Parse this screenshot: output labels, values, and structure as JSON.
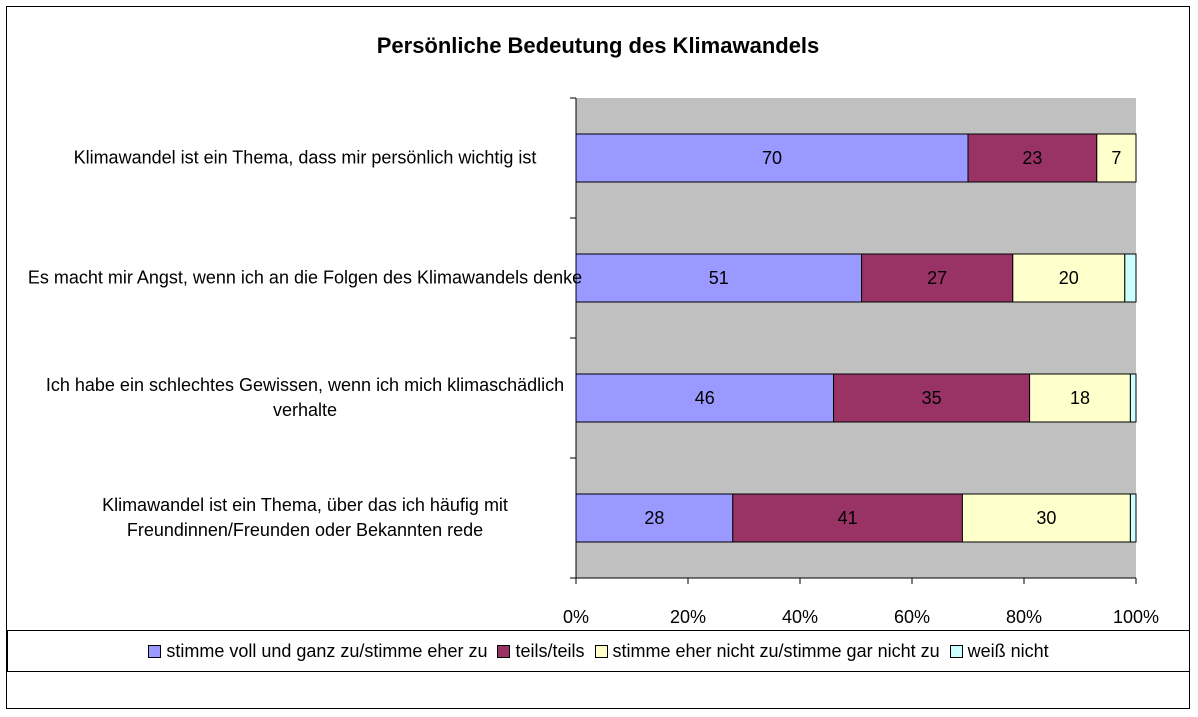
{
  "chart_data": {
    "type": "bar",
    "orientation": "horizontal",
    "stacked": true,
    "title": "Persönliche Bedeutung des Klimawandels",
    "categories": [
      "Klimawandel ist ein Thema, dass mir persönlich wichtig ist",
      "Es macht mir Angst, wenn ich an die Folgen des Klimawandels denke",
      "Ich habe ein schlechtes Gewissen, wenn ich mich klimaschädlich verhalte",
      "Klimawandel ist ein Thema, über das ich häufig mit Freundinnen/Freunden oder Bekannten rede"
    ],
    "series": [
      {
        "name": "stimme voll und ganz zu/stimme eher zu",
        "color": "#9999ff",
        "values": [
          70,
          51,
          46,
          28
        ]
      },
      {
        "name": "teils/teils",
        "color": "#993366",
        "values": [
          23,
          27,
          35,
          41
        ]
      },
      {
        "name": "stimme eher nicht zu/stimme gar nicht zu",
        "color": "#ffffcc",
        "values": [
          7,
          20,
          18,
          30
        ]
      },
      {
        "name": "weiß nicht",
        "color": "#ccffff",
        "values": [
          0,
          2,
          1,
          1
        ]
      }
    ],
    "xlim": [
      0,
      100
    ],
    "xticks": [
      {
        "value": 0,
        "label": "0%"
      },
      {
        "value": 20,
        "label": "20%"
      },
      {
        "value": 40,
        "label": "40%"
      },
      {
        "value": 60,
        "label": "60%"
      },
      {
        "value": 80,
        "label": "80%"
      },
      {
        "value": 100,
        "label": "100%"
      }
    ],
    "plot_background": "#c0c0c0"
  }
}
